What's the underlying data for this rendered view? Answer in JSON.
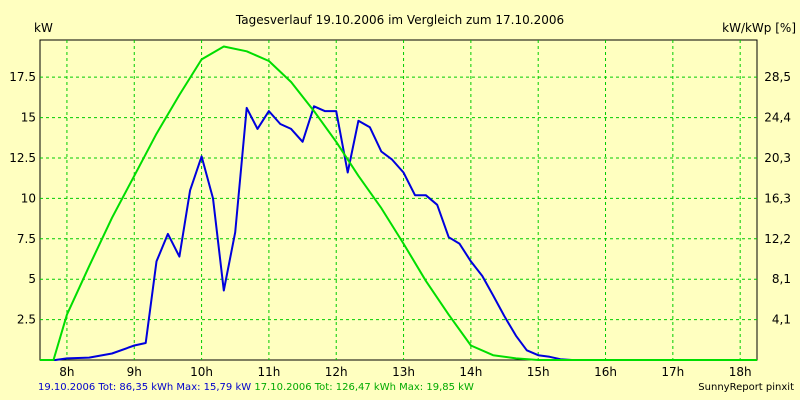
{
  "chart_data": {
    "type": "line",
    "title": "Tagesverlauf 19.10.2006 im Vergleich zum 17.10.2006",
    "ylabel_left": "kW",
    "ylabel_right": "kW/kWp [%]",
    "xlim": [
      7.6,
      18.25
    ],
    "ylim": [
      0,
      19.8
    ],
    "x_ticks": [
      8,
      9,
      10,
      11,
      12,
      13,
      14,
      15,
      16,
      17,
      18
    ],
    "x_tick_labels": [
      "8h",
      "9h",
      "10h",
      "11h",
      "12h",
      "13h",
      "14h",
      "15h",
      "16h",
      "17h",
      "18h"
    ],
    "y_ticks": [
      2.5,
      5,
      7.5,
      10,
      12.5,
      15,
      17.5
    ],
    "y_tick_labels": [
      "2.5",
      "5",
      "7.5",
      "10",
      "12.5",
      "15",
      "17.5"
    ],
    "y_right_tick_labels": [
      "4,1",
      "8,1",
      "12,2",
      "16,3",
      "20,3",
      "24,4",
      "28,5"
    ],
    "grid": true,
    "series": [
      {
        "name": "19.10.2006",
        "color": "#0000dd",
        "x": [
          7.6,
          7.83,
          8.0,
          8.33,
          8.67,
          9.0,
          9.17,
          9.33,
          9.5,
          9.67,
          9.83,
          10.0,
          10.17,
          10.33,
          10.5,
          10.67,
          10.83,
          11.0,
          11.17,
          11.33,
          11.5,
          11.67,
          11.83,
          12.0,
          12.17,
          12.33,
          12.5,
          12.67,
          12.83,
          13.0,
          13.17,
          13.33,
          13.5,
          13.67,
          13.83,
          14.0,
          14.17,
          14.33,
          14.5,
          14.67,
          14.83,
          15.0,
          15.17,
          15.33,
          15.5,
          15.67,
          15.83,
          16.0,
          16.17,
          16.33,
          16.5,
          16.67,
          16.83,
          17.0,
          17.17,
          17.33,
          17.5,
          17.67,
          17.83,
          18.0,
          18.25
        ],
        "y": [
          0,
          0,
          0.1,
          0.15,
          0.4,
          0.9,
          1.05,
          6.1,
          7.8,
          6.4,
          10.5,
          12.6,
          10.0,
          4.3,
          7.9,
          15.6,
          14.3,
          15.4,
          14.6,
          14.3,
          13.5,
          15.7,
          15.4,
          15.4,
          11.6,
          14.8,
          14.4,
          12.9,
          12.4,
          11.6,
          10.2,
          10.2,
          9.6,
          7.6,
          7.2,
          6.1,
          5.2,
          4.0,
          2.7,
          1.5,
          0.6,
          0.3,
          0.2,
          0.05,
          0,
          0,
          0,
          0,
          0,
          0,
          0,
          0,
          0,
          0,
          0,
          0,
          0,
          0,
          0,
          0,
          0
        ]
      },
      {
        "name": "17.10.2006",
        "color": "#00dd00",
        "x": [
          7.6,
          7.8,
          8.0,
          8.33,
          8.67,
          9.0,
          9.33,
          9.67,
          10.0,
          10.33,
          10.67,
          11.0,
          11.33,
          11.67,
          12.0,
          12.33,
          12.67,
          13.0,
          13.33,
          13.67,
          14.0,
          14.33,
          14.67,
          15.0,
          15.33,
          15.67,
          16.0,
          16.33,
          16.67,
          17.0,
          17.17,
          17.33,
          17.5,
          17.67,
          17.83,
          18.0,
          18.25
        ],
        "y": [
          0,
          0,
          2.8,
          5.8,
          8.8,
          11.4,
          14.0,
          16.4,
          18.6,
          19.4,
          19.1,
          18.5,
          17.2,
          15.4,
          13.5,
          11.4,
          9.4,
          7.2,
          4.9,
          2.8,
          0.9,
          0.3,
          0.1,
          0,
          0,
          0,
          0,
          0,
          0,
          0,
          0,
          0,
          0,
          0,
          0,
          0,
          0
        ]
      }
    ]
  },
  "footer": {
    "blue_text": "19.10.2006 Tot: 86,35 kWh Max: 15,79 kW",
    "green_text": "17.10.2006 Tot: 126,47 kWh Max: 19,85 kW",
    "credit": "SunnyReport pinxit"
  }
}
